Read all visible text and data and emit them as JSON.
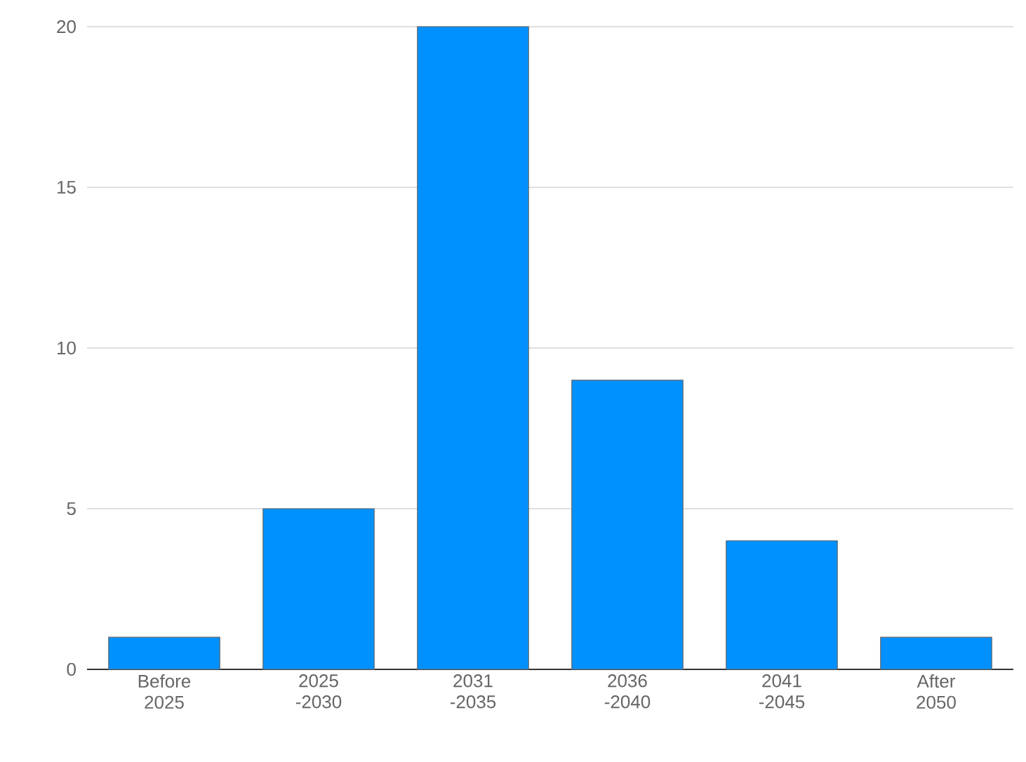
{
  "chart_data": {
    "type": "bar",
    "categories": [
      "Before 2025",
      "2025 -2030",
      "2031 -2035",
      "2036 -2040",
      "2041 -2045",
      "After 2050"
    ],
    "values": [
      1,
      5,
      20,
      9,
      4,
      1
    ],
    "color": "#0091ff",
    "ylim": [
      0,
      20
    ],
    "yticks": [
      0,
      5,
      10,
      15,
      20
    ],
    "grid": "y"
  }
}
